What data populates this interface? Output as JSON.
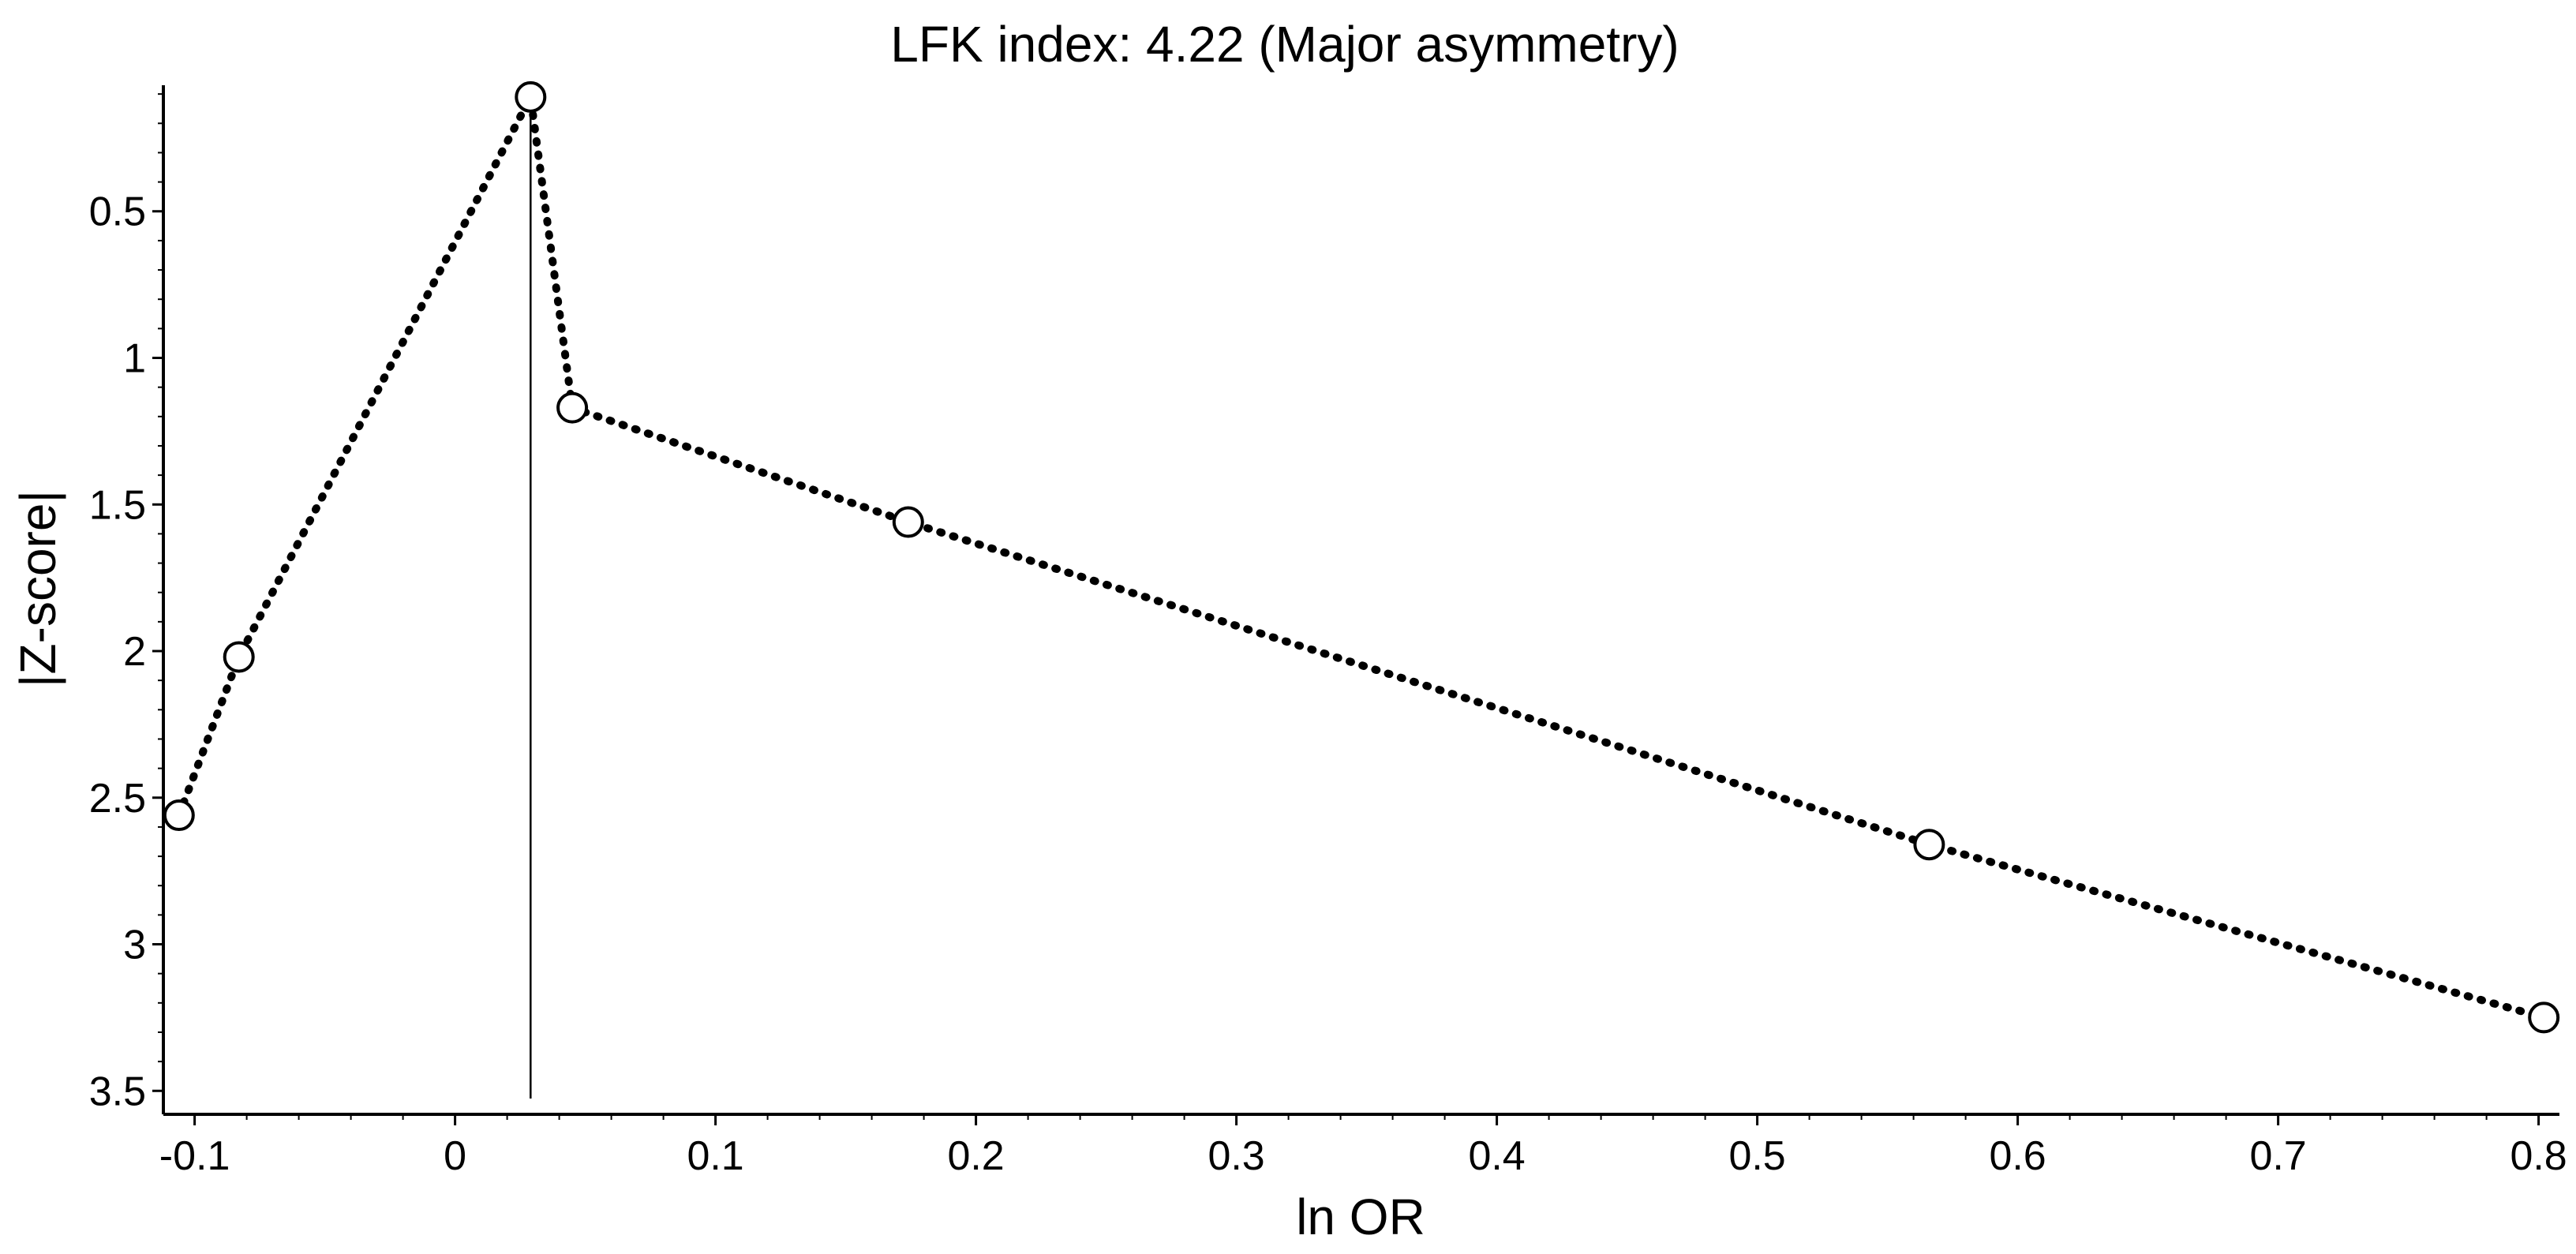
{
  "chart_data": {
    "type": "line",
    "title": "LFK index: 4.22 (Major asymmetry)",
    "xlabel": "ln OR",
    "ylabel": "|Z-score|",
    "xlim": [
      -0.112,
      0.808
    ],
    "ylim": [
      0.07,
      3.58
    ],
    "y_inverted": true,
    "x_ticks": [
      -0.1,
      0,
      0.1,
      0.2,
      0.3,
      0.4,
      0.5,
      0.6,
      0.7,
      0.8
    ],
    "x_tick_labels": [
      "-0.1",
      "0",
      "0.1",
      "0.2",
      "0.3",
      "0.4",
      "0.5",
      "0.6",
      "0.7",
      "0.8"
    ],
    "y_ticks": [
      0.5,
      1,
      1.5,
      2,
      2.5,
      3,
      3.5
    ],
    "y_tick_labels": [
      "0.5",
      "1",
      "1.5",
      "2",
      "2.5",
      "3",
      "3.5"
    ],
    "reference_line_x": 0.029,
    "grid": false,
    "series": [
      {
        "x": [
          -0.106,
          -0.083,
          0.029,
          0.045,
          0.174,
          0.566,
          0.802
        ],
        "y": [
          2.56,
          2.02,
          0.11,
          1.17,
          1.56,
          2.66,
          3.25
        ],
        "line_style": "dotted",
        "marker": "open-circle",
        "color": "#000000"
      }
    ]
  }
}
